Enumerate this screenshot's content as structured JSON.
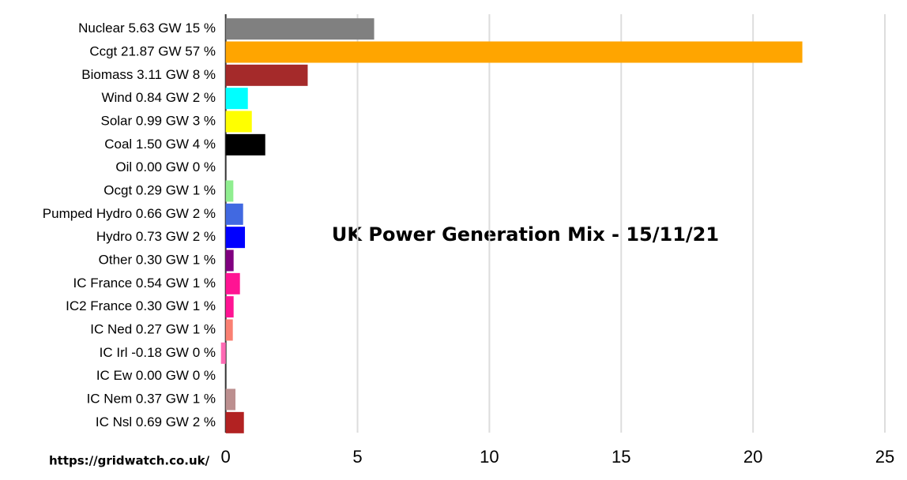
{
  "chart_data": {
    "type": "hbar",
    "title": "UK Power Generation Mix - 15/11/21",
    "source": "https://gridwatch.co.uk/",
    "categories": [
      "Nuclear 5.63 GW 15 %",
      "Ccgt 21.87 GW 57 %",
      "Biomass 3.11 GW 8 %",
      "Wind 0.84 GW 2 %",
      "Solar 0.99 GW 3 %",
      "Coal 1.50 GW 4 %",
      "Oil 0.00 GW 0 %",
      "Ocgt 0.29 GW 1 %",
      "Pumped Hydro 0.66 GW 2 %",
      "Hydro 0.73 GW 2 %",
      "Other 0.30 GW 1 %",
      "IC France 0.54 GW 1 %",
      "IC2 France 0.30 GW 1 %",
      "IC Ned 0.27 GW 1 %",
      "IC Irl -0.18 GW 0 %",
      "IC Ew 0.00 GW 0 %",
      "IC Nem 0.37 GW 1 %",
      "IC Nsl 0.69 GW 2 %"
    ],
    "values": [
      5.63,
      21.87,
      3.11,
      0.84,
      0.99,
      1.5,
      0,
      0.29,
      0.66,
      0.73,
      0.3,
      0.54,
      0.3,
      0.27,
      -0.18,
      0,
      0.37,
      0.69
    ],
    "colors": [
      "#808080",
      "#ffa500",
      "#a52a2a",
      "#00ffff",
      "#ffff00",
      "#000000",
      "#000000",
      "#90ee90",
      "#4169e1",
      "#0000ff",
      "#800080",
      "#ff1493",
      "#ff1493",
      "#fa8072",
      "#ff69b4",
      "#000000",
      "#bc8f8f",
      "#b22222"
    ],
    "xlim": [
      -0.2,
      25
    ],
    "xticks": [
      0,
      5,
      10,
      15,
      20,
      25
    ],
    "grid": true
  }
}
